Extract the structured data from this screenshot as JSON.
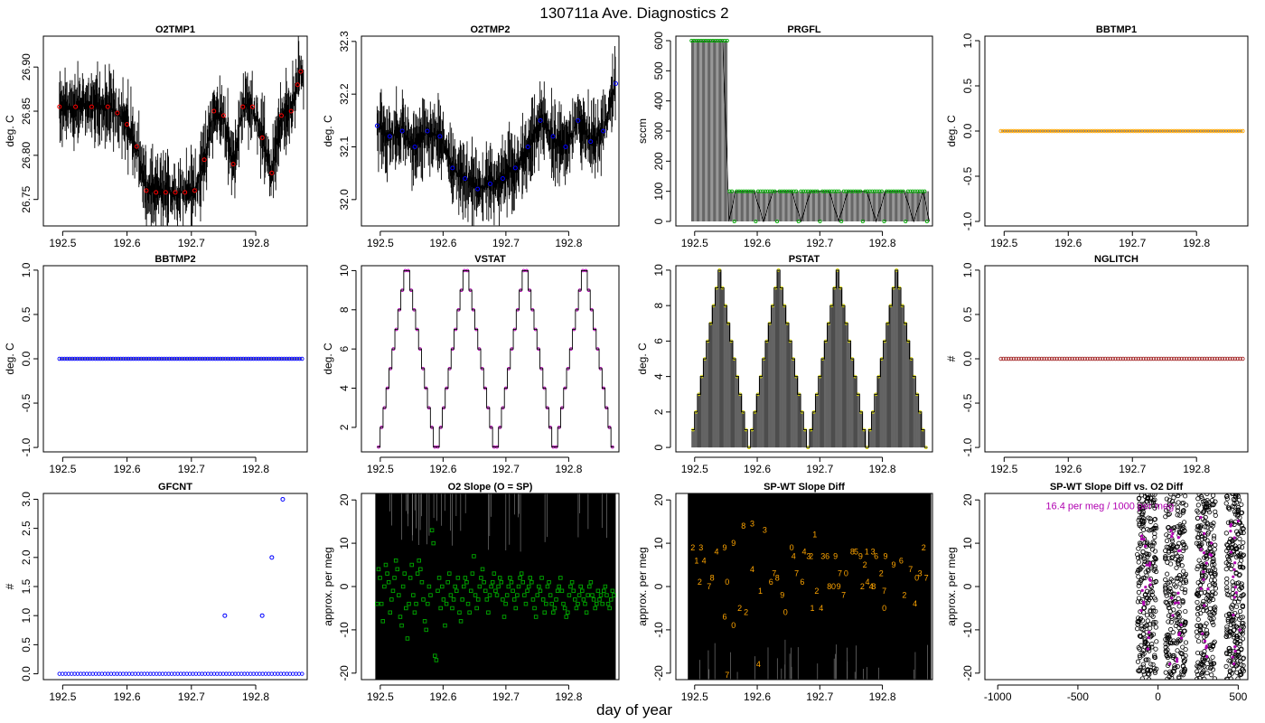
{
  "title": "130711a   Ave. Diagnostics 2",
  "xlabel": "day of year",
  "colors": {
    "red": "#ff0000",
    "blue": "#0000ff",
    "green": "#00aa00",
    "orange": "#ffa500",
    "magenta": "#b000b0",
    "yellow": "#dddd00",
    "brown": "#a52a2a"
  },
  "chart_data": [
    {
      "id": "o2tmp1",
      "type": "line",
      "title": "O2TMP1",
      "ylabel": "deg. C",
      "xlim": [
        192.47,
        192.88
      ],
      "xticks": [
        192.5,
        192.6,
        192.7,
        192.8
      ],
      "xtick_labels": [
        "192.5",
        "192.6",
        "192.7",
        "192.8"
      ],
      "ylim": [
        26.72,
        26.935
      ],
      "yticks": [
        26.75,
        26.8,
        26.85,
        26.9
      ],
      "ytick_labels": [
        "26.75",
        "26.80",
        "26.85",
        "26.90"
      ],
      "marker_color": "red",
      "x": [
        192.495,
        192.52,
        192.545,
        192.57,
        192.585,
        192.6,
        192.615,
        192.63,
        192.645,
        192.66,
        192.675,
        192.69,
        192.705,
        192.72,
        192.735,
        192.75,
        192.765,
        192.78,
        192.795,
        192.81,
        192.825,
        192.84,
        192.855,
        192.865,
        192.87
      ],
      "values": [
        26.855,
        26.855,
        26.855,
        26.855,
        26.848,
        26.835,
        26.81,
        26.76,
        26.758,
        26.758,
        26.758,
        26.758,
        26.76,
        26.795,
        26.85,
        26.845,
        26.79,
        26.855,
        26.855,
        26.82,
        26.78,
        26.845,
        26.85,
        26.88,
        26.895
      ]
    },
    {
      "id": "o2tmp2",
      "type": "line",
      "title": "O2TMP2",
      "ylabel": "deg. C",
      "xlim": [
        192.47,
        192.88
      ],
      "xticks": [
        192.5,
        192.6,
        192.7,
        192.8
      ],
      "xtick_labels": [
        "192.5",
        "192.6",
        "192.7",
        "192.8"
      ],
      "ylim": [
        31.95,
        32.31
      ],
      "yticks": [
        32.0,
        32.1,
        32.2,
        32.3
      ],
      "ytick_labels": [
        "32.0",
        "32.1",
        "32.2",
        "32.3"
      ],
      "marker_color": "blue",
      "x": [
        192.495,
        192.515,
        192.535,
        192.555,
        192.575,
        192.595,
        192.615,
        192.635,
        192.655,
        192.675,
        192.695,
        192.715,
        192.735,
        192.755,
        192.775,
        192.795,
        192.815,
        192.835,
        192.855,
        192.875
      ],
      "values": [
        32.14,
        32.12,
        32.13,
        32.1,
        32.13,
        32.12,
        32.06,
        32.04,
        32.02,
        32.03,
        32.04,
        32.06,
        32.1,
        32.15,
        32.12,
        32.1,
        32.15,
        32.11,
        32.13,
        32.22
      ]
    },
    {
      "id": "prgfl",
      "type": "line",
      "title": "PRGFL",
      "ylabel": "sccm",
      "xlim": [
        192.47,
        192.88
      ],
      "xticks": [
        192.5,
        192.6,
        192.7,
        192.8
      ],
      "xtick_labels": [
        "192.5",
        "192.6",
        "192.7",
        "192.8"
      ],
      "ylim": [
        -15,
        615
      ],
      "yticks": [
        0,
        100,
        200,
        300,
        400,
        500,
        600
      ],
      "ytick_labels": [
        "0",
        "100",
        "200",
        "300",
        "400",
        "500",
        "600"
      ],
      "marker_color": "green",
      "x": [
        192.495,
        192.505,
        192.515,
        192.525,
        192.535,
        192.545,
        192.555,
        192.565,
        192.58,
        192.595,
        192.61,
        192.625,
        192.64,
        192.655,
        192.67,
        192.685,
        192.7,
        192.715,
        192.73,
        192.745,
        192.76,
        192.775,
        192.79,
        192.805,
        192.82,
        192.835,
        192.85,
        192.865,
        192.875
      ],
      "values": [
        600,
        600,
        600,
        600,
        600,
        600,
        0,
        100,
        100,
        100,
        0,
        100,
        100,
        100,
        0,
        100,
        100,
        100,
        0,
        100,
        100,
        100,
        0,
        100,
        100,
        100,
        0,
        100,
        0
      ]
    },
    {
      "id": "bbtmp1",
      "type": "line",
      "title": "BBTMP1",
      "ylabel": "deg. C",
      "xlim": [
        192.47,
        192.88
      ],
      "xticks": [
        192.5,
        192.6,
        192.7,
        192.8
      ],
      "xtick_labels": [
        "192.5",
        "192.6",
        "192.7",
        "192.8"
      ],
      "ylim": [
        -1.05,
        1.05
      ],
      "yticks": [
        -1,
        -0.5,
        0,
        0.5,
        1
      ],
      "ytick_labels": [
        "-1.0",
        "-0.5",
        "0.0",
        "0.5",
        "1.0"
      ],
      "marker_color": "orange",
      "constant": 0,
      "x_start": 192.495,
      "x_end": 192.872
    },
    {
      "id": "bbtmp2",
      "type": "line",
      "title": "BBTMP2",
      "ylabel": "deg. C",
      "xlim": [
        192.47,
        192.88
      ],
      "xticks": [
        192.5,
        192.6,
        192.7,
        192.8
      ],
      "xtick_labels": [
        "192.5",
        "192.6",
        "192.7",
        "192.8"
      ],
      "ylim": [
        -1.05,
        1.05
      ],
      "yticks": [
        -1,
        -0.5,
        0,
        0.5,
        1
      ],
      "ytick_labels": [
        "-1.0",
        "-0.5",
        "0.0",
        "0.5",
        "1.0"
      ],
      "marker_color": "blue",
      "constant": 0,
      "x_start": 192.495,
      "x_end": 192.872
    },
    {
      "id": "vstat",
      "type": "line",
      "title": "VSTAT",
      "ylabel": "deg. C",
      "xlim": [
        192.47,
        192.88
      ],
      "xticks": [
        192.5,
        192.6,
        192.7,
        192.8
      ],
      "xtick_labels": [
        "192.5",
        "192.6",
        "192.7",
        "192.8"
      ],
      "ylim": [
        0.75,
        10.25
      ],
      "yticks": [
        2,
        4,
        6,
        8,
        10
      ],
      "ytick_labels": [
        "2",
        "4",
        "6",
        "8",
        "10"
      ],
      "marker_color": "magenta",
      "cycles": 4,
      "levels": [
        1,
        2,
        3,
        4,
        5,
        6,
        7,
        8,
        9,
        10,
        10,
        9,
        8,
        7,
        6,
        5,
        4,
        3,
        2,
        1
      ],
      "x_start": 192.495,
      "x_end": 192.872
    },
    {
      "id": "pstat",
      "type": "line",
      "title": "PSTAT",
      "ylabel": "deg. C",
      "xlim": [
        192.47,
        192.88
      ],
      "xticks": [
        192.5,
        192.6,
        192.7,
        192.8
      ],
      "xtick_labels": [
        "192.5",
        "192.6",
        "192.7",
        "192.8"
      ],
      "ylim": [
        -0.25,
        10.25
      ],
      "yticks": [
        0,
        2,
        4,
        6,
        8,
        10
      ],
      "ytick_labels": [
        "0",
        "2",
        "4",
        "6",
        "8",
        "10"
      ],
      "marker_color": "yellow",
      "cycles": 4,
      "levels": [
        1,
        2,
        3,
        4,
        5,
        6,
        7,
        8,
        9,
        10,
        9,
        8,
        7,
        6,
        5,
        4,
        3,
        2,
        1,
        0
      ],
      "x_start": 192.495,
      "x_end": 192.872
    },
    {
      "id": "nglitch",
      "type": "scatter",
      "title": "NGLITCH",
      "ylabel": "#",
      "xlim": [
        192.47,
        192.88
      ],
      "xticks": [
        192.5,
        192.6,
        192.7,
        192.8
      ],
      "xtick_labels": [
        "192.5",
        "192.6",
        "192.7",
        "192.8"
      ],
      "ylim": [
        -1.05,
        1.05
      ],
      "yticks": [
        -1,
        -0.5,
        0,
        0.5,
        1
      ],
      "ytick_labels": [
        "-1.0",
        "-0.5",
        "0.0",
        "0.5",
        "1.0"
      ],
      "marker_color": "brown",
      "constant": 0,
      "x_start": 192.495,
      "x_end": 192.872
    },
    {
      "id": "gfcnt",
      "type": "scatter",
      "title": "GFCNT",
      "ylabel": "#",
      "xlim": [
        192.47,
        192.88
      ],
      "xticks": [
        192.5,
        192.6,
        192.7,
        192.8
      ],
      "xtick_labels": [
        "192.5",
        "192.6",
        "192.7",
        "192.8"
      ],
      "ylim": [
        -0.1,
        3.1
      ],
      "yticks": [
        0,
        0.5,
        1,
        1.5,
        2,
        2.5,
        3
      ],
      "ytick_labels": [
        "0.0",
        "0.5",
        "1.0",
        "1.5",
        "2.0",
        "2.5",
        "3.0"
      ],
      "marker_color": "blue",
      "baseline": 0,
      "x_start": 192.495,
      "x_end": 192.872,
      "x": [
        192.752,
        192.81,
        192.825,
        192.842
      ],
      "values": [
        1,
        1,
        2,
        3
      ]
    },
    {
      "id": "o2slope",
      "type": "scatter",
      "title": "O2 Slope (O = SP)",
      "ylabel": "approx. per meg",
      "xlim": [
        192.47,
        192.88
      ],
      "xticks": [
        192.5,
        192.6,
        192.7,
        192.8
      ],
      "xtick_labels": [
        "192.5",
        "192.6",
        "192.7",
        "192.8"
      ],
      "ylim": [
        -21.5,
        21.5
      ],
      "yticks": [
        -20,
        -10,
        0,
        10,
        20
      ],
      "ytick_labels": [
        "-20",
        "-10",
        "0",
        "10",
        "20"
      ],
      "marker_color": "green",
      "x_start": 192.495,
      "x_end": 192.872,
      "values": [
        -4,
        4,
        2,
        -4,
        -8,
        0,
        5,
        3,
        1,
        -6,
        -3,
        -1,
        2,
        6,
        4,
        -2,
        -7,
        -9,
        0,
        3,
        -5,
        -12,
        -4,
        2,
        5,
        -2,
        -6,
        -4,
        3,
        6,
        4,
        1,
        -3,
        -8,
        -10,
        -4,
        0,
        -2,
        13,
        10,
        -16,
        -17,
        -1,
        2,
        -5,
        0,
        -3,
        -9,
        -4,
        1,
        3,
        -2,
        -5,
        -3,
        0,
        -1,
        2,
        -6,
        -8,
        -3,
        0,
        2,
        1,
        -4,
        -6,
        -1,
        3,
        7,
        -2,
        -5,
        -3,
        0,
        2,
        4,
        1,
        -1,
        -3,
        -6,
        -2,
        0,
        1,
        3,
        -1,
        -2,
        0,
        2,
        1,
        -3,
        -7,
        -4,
        -2,
        0,
        2,
        1,
        -1,
        -3,
        -5,
        -2,
        0,
        2,
        3,
        1,
        -2,
        -4,
        -1,
        0,
        2,
        1,
        -3,
        -5,
        -7,
        -2,
        0,
        -1,
        2,
        -3,
        -6,
        -4,
        0,
        1,
        -2,
        -4,
        -6,
        -5,
        -3,
        -1,
        0,
        2,
        -1,
        -4,
        -5,
        -7,
        -6,
        -2,
        0,
        1,
        -1,
        -3,
        -5,
        -4,
        -2,
        0,
        -1,
        -3,
        -4,
        -6,
        -2,
        0,
        1,
        -2,
        -3,
        -5,
        -4,
        -1,
        -3,
        -2,
        -4,
        -1,
        0,
        -2,
        -4,
        -5,
        -3,
        -1,
        -2
      ]
    },
    {
      "id": "spwt",
      "type": "scatter",
      "title": "SP-WT Slope Diff",
      "ylabel": "approx. per meg",
      "xlim": [
        192.47,
        192.88
      ],
      "xticks": [
        192.5,
        192.6,
        192.7,
        192.8
      ],
      "xtick_labels": [
        "192.5",
        "192.6",
        "192.7",
        "192.8"
      ],
      "ylim": [
        -21.5,
        21.5
      ],
      "yticks": [
        -20,
        -10,
        0,
        10,
        20
      ],
      "ytick_labels": [
        "-20",
        "-10",
        "0",
        "10",
        "20"
      ],
      "marker_color": "orange",
      "points": [
        {
          "x": 192.497,
          "y": 9,
          "t": "2"
        },
        {
          "x": 192.51,
          "y": 9,
          "t": "3"
        },
        {
          "x": 192.503,
          "y": 6,
          "t": "1"
        },
        {
          "x": 192.515,
          "y": 6,
          "t": "4"
        },
        {
          "x": 192.535,
          "y": 8,
          "t": "4"
        },
        {
          "x": 192.548,
          "y": 9,
          "t": "9"
        },
        {
          "x": 192.562,
          "y": 10,
          "t": "9"
        },
        {
          "x": 192.578,
          "y": 14,
          "t": "8"
        },
        {
          "x": 192.592,
          "y": 14.5,
          "t": "3"
        },
        {
          "x": 192.612,
          "y": 13,
          "t": "3"
        },
        {
          "x": 192.508,
          "y": 1,
          "t": "2"
        },
        {
          "x": 192.523,
          "y": 0,
          "t": "7"
        },
        {
          "x": 192.528,
          "y": 2,
          "t": "8"
        },
        {
          "x": 192.552,
          "y": 1,
          "t": "0"
        },
        {
          "x": 192.592,
          "y": 4,
          "t": "4"
        },
        {
          "x": 192.548,
          "y": -7,
          "t": "6"
        },
        {
          "x": 192.562,
          "y": -9,
          "t": "0"
        },
        {
          "x": 192.572,
          "y": -5,
          "t": "2"
        },
        {
          "x": 192.582,
          "y": -6,
          "t": "2"
        },
        {
          "x": 192.605,
          "y": -1,
          "t": "1"
        },
        {
          "x": 192.64,
          "y": -2,
          "t": "9"
        },
        {
          "x": 192.645,
          "y": -6,
          "t": "0"
        },
        {
          "x": 192.552,
          "y": -20.5,
          "t": "7"
        },
        {
          "x": 192.602,
          "y": -18,
          "t": "4"
        },
        {
          "x": 192.622,
          "y": 1,
          "t": "6"
        },
        {
          "x": 192.627,
          "y": 3,
          "t": "7"
        },
        {
          "x": 192.632,
          "y": 2,
          "t": "8"
        },
        {
          "x": 192.655,
          "y": 9,
          "t": "0"
        },
        {
          "x": 192.658,
          "y": 7,
          "t": "4"
        },
        {
          "x": 192.675,
          "y": 8,
          "t": "4"
        },
        {
          "x": 192.682,
          "y": 7,
          "t": "3"
        },
        {
          "x": 192.686,
          "y": 7,
          "t": "2"
        },
        {
          "x": 192.692,
          "y": 12,
          "t": "1"
        },
        {
          "x": 192.663,
          "y": 3,
          "t": "7"
        },
        {
          "x": 192.672,
          "y": 1,
          "t": "6"
        },
        {
          "x": 192.695,
          "y": -1,
          "t": "2"
        },
        {
          "x": 192.705,
          "y": 7,
          "t": "3"
        },
        {
          "x": 192.712,
          "y": 7,
          "t": "6"
        },
        {
          "x": 192.725,
          "y": 7,
          "t": "9"
        },
        {
          "x": 192.732,
          "y": 3,
          "t": "7"
        },
        {
          "x": 192.742,
          "y": 3,
          "t": "0"
        },
        {
          "x": 192.688,
          "y": -5,
          "t": "1"
        },
        {
          "x": 192.702,
          "y": -5,
          "t": "4"
        },
        {
          "x": 192.715,
          "y": 0,
          "t": "8"
        },
        {
          "x": 192.722,
          "y": 0,
          "t": "0"
        },
        {
          "x": 192.73,
          "y": 0,
          "t": "9"
        },
        {
          "x": 192.738,
          "y": -2,
          "t": "7"
        },
        {
          "x": 192.752,
          "y": 8,
          "t": "8"
        },
        {
          "x": 192.758,
          "y": 8,
          "t": "5"
        },
        {
          "x": 192.765,
          "y": 7,
          "t": "9"
        },
        {
          "x": 192.772,
          "y": 5,
          "t": "2"
        },
        {
          "x": 192.775,
          "y": 8,
          "t": "1"
        },
        {
          "x": 192.785,
          "y": 8,
          "t": "3"
        },
        {
          "x": 192.79,
          "y": 7,
          "t": "6"
        },
        {
          "x": 192.768,
          "y": 0,
          "t": "2"
        },
        {
          "x": 192.776,
          "y": 1,
          "t": "4"
        },
        {
          "x": 192.782,
          "y": 0,
          "t": "4"
        },
        {
          "x": 192.786,
          "y": 0,
          "t": "8"
        },
        {
          "x": 192.805,
          "y": 7,
          "t": "9"
        },
        {
          "x": 192.818,
          "y": 5,
          "t": "9"
        },
        {
          "x": 192.798,
          "y": 3,
          "t": "2"
        },
        {
          "x": 192.803,
          "y": -1,
          "t": "7"
        },
        {
          "x": 192.83,
          "y": 6,
          "t": "6"
        },
        {
          "x": 192.845,
          "y": 4,
          "t": "7"
        },
        {
          "x": 192.835,
          "y": -2,
          "t": "2"
        },
        {
          "x": 192.852,
          "y": -4,
          "t": "4"
        },
        {
          "x": 192.803,
          "y": -5,
          "t": "0"
        },
        {
          "x": 192.866,
          "y": 9,
          "t": "2"
        },
        {
          "x": 192.86,
          "y": 3,
          "t": "3"
        },
        {
          "x": 192.87,
          "y": 2,
          "t": "7"
        },
        {
          "x": 192.855,
          "y": 2,
          "t": "0"
        }
      ]
    },
    {
      "id": "spwt_vs_o2",
      "type": "scatter",
      "title": "SP-WT Slope Diff vs. O2 Diff",
      "ylabel": "approx. per meg",
      "xlim": [
        -1080,
        560
      ],
      "xticks": [
        -1000,
        -500,
        0,
        500
      ],
      "xtick_labels": [
        "-1000",
        "-500",
        "0",
        "500"
      ],
      "ylim": [
        -21.5,
        21.5
      ],
      "yticks": [
        -20,
        -10,
        0,
        10,
        20
      ],
      "ytick_labels": [
        "-20",
        "-10",
        "0",
        "10",
        "20"
      ],
      "marker_color": "magenta",
      "annotation": "16.4 per meg / 1000 per meg",
      "clusters": [
        {
          "x_center": -70,
          "width": 120
        },
        {
          "x_center": 110,
          "width": 130
        },
        {
          "x_center": 300,
          "width": 120
        },
        {
          "x_center": 480,
          "width": 110
        }
      ]
    }
  ]
}
